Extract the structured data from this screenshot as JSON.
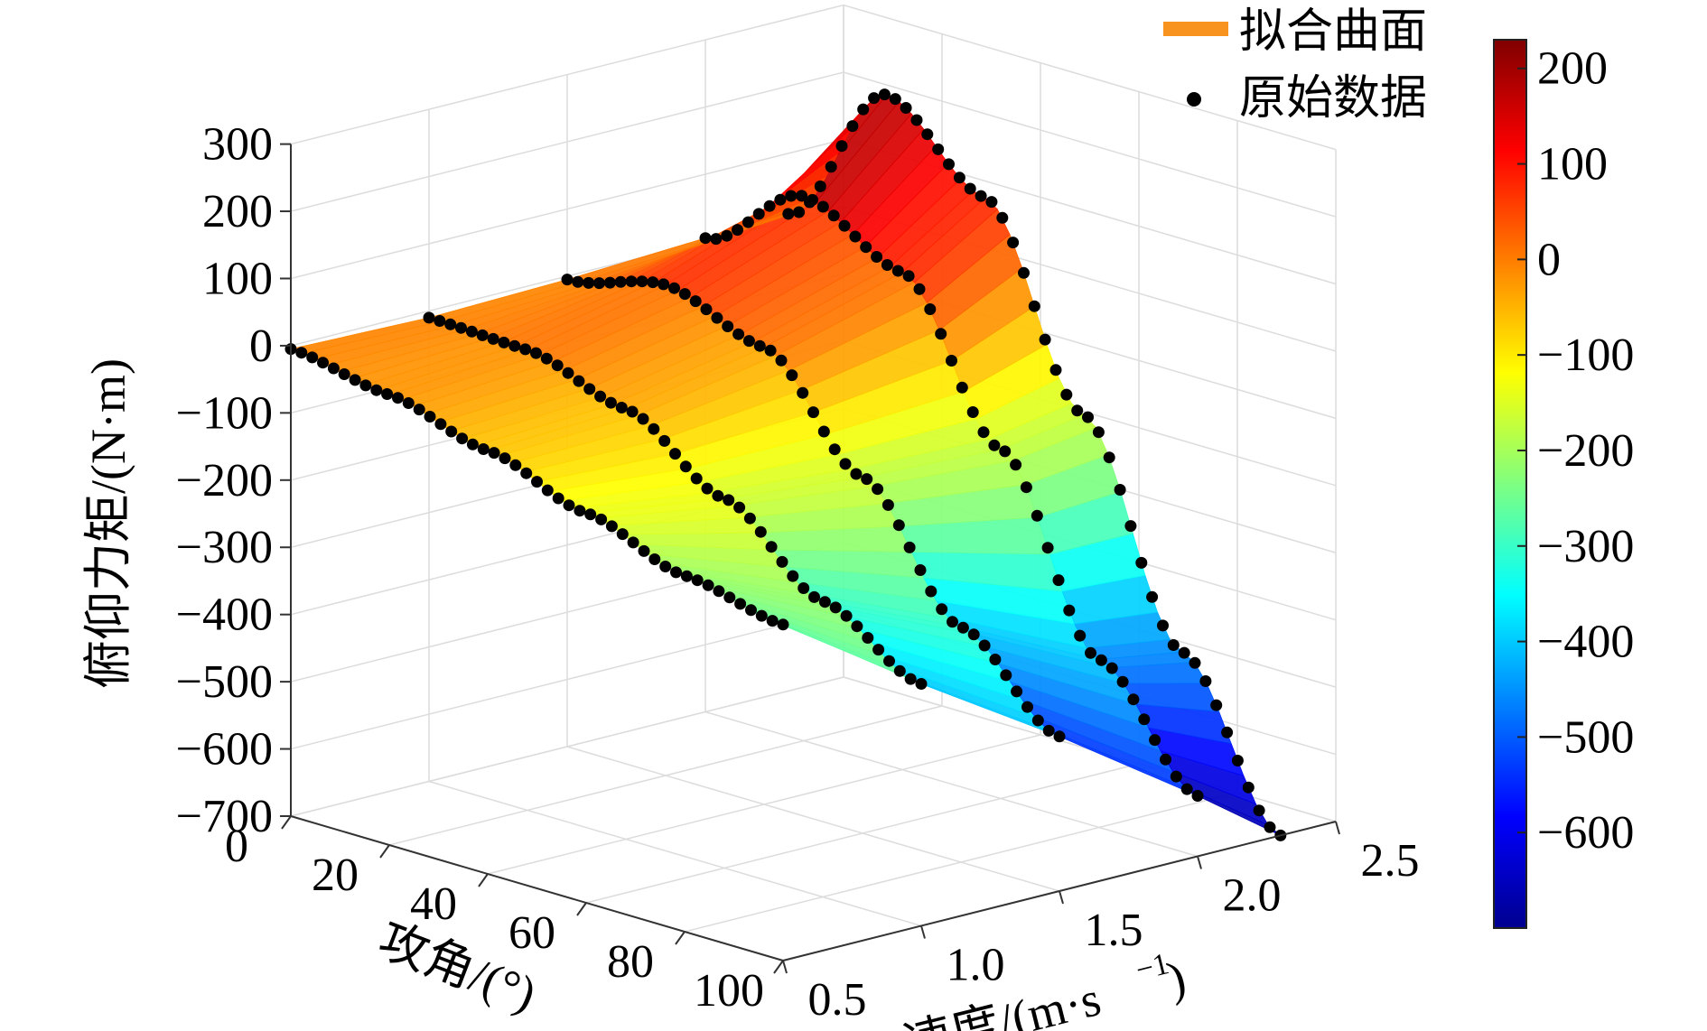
{
  "chart_data": {
    "type": "surface3d",
    "zlabel": "俯仰力矩/(N·m)",
    "xlabel": "攻角/(°)",
    "ylabel_main": "速度/(m·s",
    "ylabel_sup": "−1",
    "ylabel_close": ")",
    "z_ticks": [
      "300",
      "200",
      "100",
      "0",
      "−100",
      "−200",
      "−300",
      "−400",
      "−500",
      "−600",
      "−700"
    ],
    "z_tick_values": [
      300,
      200,
      100,
      0,
      -100,
      -200,
      -300,
      -400,
      -500,
      -600,
      -700
    ],
    "x_ticks": [
      "0",
      "20",
      "40",
      "60",
      "80",
      "100"
    ],
    "x_tick_values": [
      0,
      20,
      40,
      60,
      80,
      100
    ],
    "y_ticks": [
      "0.5",
      "1.0",
      "1.5",
      "2.0",
      "2.5"
    ],
    "y_tick_values": [
      0.5,
      1.0,
      1.5,
      2.0,
      2.5
    ],
    "xlim": [
      0,
      100
    ],
    "ylim": [
      0.5,
      2.5
    ],
    "zlim": [
      -700,
      300
    ],
    "grid": true,
    "legend": {
      "position": "top-right",
      "entries": [
        {
          "label": "拟合曲面",
          "marker": "line",
          "color": "#F7931E"
        },
        {
          "label": "原始数据",
          "marker": "dot",
          "color": "#000000"
        }
      ]
    },
    "colorbar": {
      "ticks": [
        "200",
        "100",
        "0",
        "−100",
        "−200",
        "−300",
        "−400",
        "−500",
        "−600"
      ],
      "tick_values": [
        200,
        100,
        0,
        -100,
        -200,
        -300,
        -400,
        -500,
        -600
      ],
      "range": [
        -700,
        230
      ],
      "colormap": "jet"
    },
    "series": [
      {
        "speed": 0.5,
        "x": [
          0,
          20,
          40,
          60,
          80,
          100
        ],
        "z": [
          -5,
          -30,
          -70,
          -120,
          -170,
          -200
        ]
      },
      {
        "speed": 1.0,
        "x": [
          0,
          20,
          40,
          60,
          80,
          100
        ],
        "z": [
          -10,
          -15,
          -60,
          -150,
          -260,
          -340
        ]
      },
      {
        "speed": 1.5,
        "x": [
          0,
          20,
          40,
          60,
          80,
          100
        ],
        "z": [
          -5,
          30,
          -20,
          -170,
          -350,
          -470
        ]
      },
      {
        "speed": 2.0,
        "x": [
          0,
          20,
          40,
          60,
          80,
          100
        ],
        "z": [
          5,
          110,
          40,
          -180,
          -450,
          -610
        ]
      },
      {
        "speed": 2.3,
        "x": [
          0,
          20,
          40,
          60,
          80,
          100
        ],
        "z": [
          10,
          230,
          120,
          -160,
          -470,
          -700
        ]
      }
    ]
  }
}
